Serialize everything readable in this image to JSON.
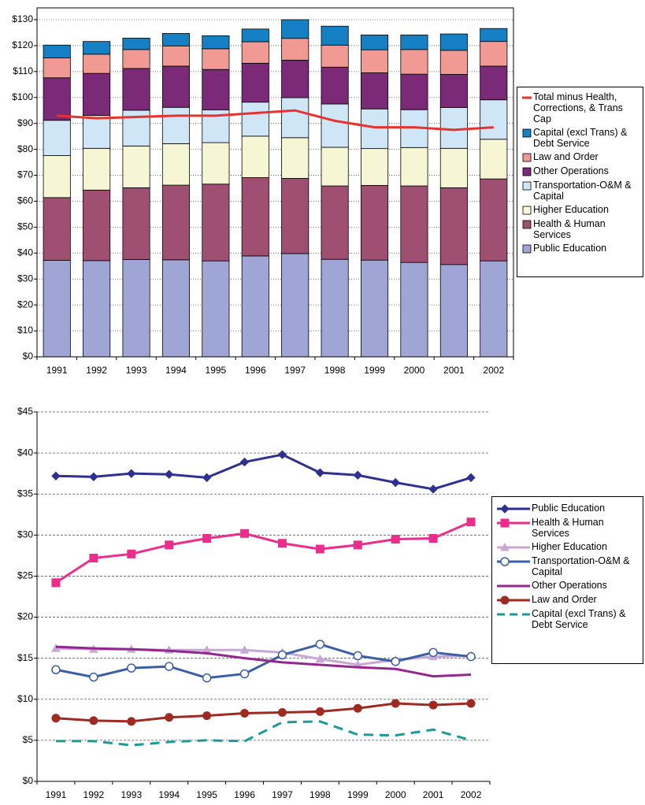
{
  "chart_data": [
    {
      "type": "stacked-bar",
      "categories": [
        "1991",
        "1992",
        "1993",
        "1994",
        "1995",
        "1996",
        "1997",
        "1998",
        "1999",
        "2000",
        "2001",
        "2002"
      ],
      "ylim": [
        0,
        130
      ],
      "yticks": [
        {
          "value": 0,
          "label": "$0"
        },
        {
          "value": 10,
          "label": "$10"
        },
        {
          "value": 20,
          "label": "$20"
        },
        {
          "value": 30,
          "label": "$30"
        },
        {
          "value": 40,
          "label": "$40"
        },
        {
          "value": 50,
          "label": "$50"
        },
        {
          "value": 60,
          "label": "$60"
        },
        {
          "value": 70,
          "label": "$70"
        },
        {
          "value": 80,
          "label": "$80"
        },
        {
          "value": 90,
          "label": "$90"
        },
        {
          "value": 100,
          "label": "$100"
        },
        {
          "value": 110,
          "label": "$110"
        },
        {
          "value": 120,
          "label": "$120"
        },
        {
          "value": 130,
          "label": "$130"
        }
      ],
      "grid": true,
      "series": [
        {
          "name": "Public Education",
          "color": "#9fa6d6",
          "values": [
            37.2,
            37.1,
            37.5,
            37.4,
            37.0,
            38.9,
            39.8,
            37.6,
            37.3,
            36.4,
            35.6,
            37.0
          ]
        },
        {
          "name": "Health & Human Services",
          "color": "#9e4f72",
          "values": [
            24.2,
            27.2,
            27.7,
            28.8,
            29.6,
            30.2,
            29.0,
            28.3,
            28.8,
            29.5,
            29.6,
            31.6
          ]
        },
        {
          "name": "Higher Education",
          "color": "#f7f6d4",
          "values": [
            16.2,
            16.1,
            16.1,
            16.0,
            16.0,
            16.0,
            15.7,
            14.9,
            14.2,
            14.8,
            15.2,
            15.3
          ]
        },
        {
          "name": "Transportation-O&M & Capital",
          "color": "#cfe6f7",
          "values": [
            13.6,
            12.7,
            13.8,
            14.0,
            12.6,
            13.1,
            15.4,
            16.7,
            15.3,
            14.6,
            15.7,
            15.2
          ]
        },
        {
          "name": "Other Operations",
          "color": "#7b2a78",
          "values": [
            16.4,
            16.2,
            16.1,
            15.9,
            15.6,
            15.0,
            14.5,
            14.2,
            13.9,
            13.7,
            12.8,
            13.0
          ]
        },
        {
          "name": "Law and Order",
          "color": "#f19a94",
          "values": [
            7.7,
            7.4,
            7.3,
            7.8,
            8.0,
            8.3,
            8.4,
            8.5,
            8.9,
            9.5,
            9.3,
            9.5
          ]
        },
        {
          "name": "Capital (excl Trans) & Debt Service",
          "color": "#1680c4",
          "values": [
            4.9,
            4.9,
            4.4,
            4.8,
            5.0,
            4.9,
            7.2,
            7.3,
            5.7,
            5.6,
            6.3,
            5.0
          ]
        },
        {
          "name": "Total minus Health, Corrections, & Trans Cap",
          "color": "#e8322e",
          "type": "line",
          "values": [
            93,
            92,
            92.5,
            93,
            93,
            94,
            95,
            91,
            88.5,
            88.5,
            87.5,
            88.5
          ]
        }
      ]
    },
    {
      "type": "line",
      "categories": [
        "1991",
        "1992",
        "1993",
        "1994",
        "1995",
        "1996",
        "1997",
        "1998",
        "1999",
        "2000",
        "2001",
        "2002"
      ],
      "ylim": [
        0,
        45
      ],
      "yticks": [
        {
          "value": 0,
          "label": "$0"
        },
        {
          "value": 5,
          "label": "$5"
        },
        {
          "value": 10,
          "label": "$10"
        },
        {
          "value": 15,
          "label": "$15"
        },
        {
          "value": 20,
          "label": "$20"
        },
        {
          "value": 25,
          "label": "$25"
        },
        {
          "value": 30,
          "label": "$30"
        },
        {
          "value": 35,
          "label": "$35"
        },
        {
          "value": 40,
          "label": "$40"
        },
        {
          "value": 45,
          "label": "$45"
        }
      ],
      "grid": true,
      "series": [
        {
          "name": "Public Education",
          "color": "#2e3192",
          "marker": "diamond",
          "values": [
            37.2,
            37.1,
            37.5,
            37.4,
            37.0,
            38.9,
            39.8,
            37.6,
            37.3,
            36.4,
            35.6,
            37.0
          ]
        },
        {
          "name": "Health & Human Services",
          "color": "#ec2d8c",
          "marker": "square",
          "values": [
            24.2,
            27.2,
            27.7,
            28.8,
            29.6,
            30.2,
            29.0,
            28.3,
            28.8,
            29.5,
            29.6,
            31.6
          ]
        },
        {
          "name": "Higher Education",
          "color": "#c7a8d4",
          "marker": "triangle",
          "values": [
            16.2,
            16.1,
            16.1,
            16.0,
            16.0,
            16.0,
            15.7,
            14.9,
            14.2,
            14.8,
            15.2,
            15.3
          ]
        },
        {
          "name": "Transportation-O&M & Capital",
          "color": "#3a5fa8",
          "marker": "open-circle",
          "values": [
            13.6,
            12.7,
            13.8,
            14.0,
            12.6,
            13.1,
            15.4,
            16.7,
            15.3,
            14.6,
            15.7,
            15.2
          ]
        },
        {
          "name": "Other Operations",
          "color": "#93278f",
          "marker": "none",
          "values": [
            16.4,
            16.2,
            16.1,
            15.9,
            15.6,
            15.0,
            14.5,
            14.2,
            13.9,
            13.7,
            12.8,
            13.0
          ]
        },
        {
          "name": "Law and Order",
          "color": "#9e2a22",
          "marker": "circle",
          "values": [
            7.7,
            7.4,
            7.3,
            7.8,
            8.0,
            8.3,
            8.4,
            8.5,
            8.9,
            9.5,
            9.3,
            9.5
          ]
        },
        {
          "name": "Capital (excl Trans) & Debt Service",
          "color": "#1b9a9a",
          "marker": "none",
          "dash": true,
          "values": [
            4.9,
            4.9,
            4.4,
            4.8,
            5.0,
            4.9,
            7.2,
            7.3,
            5.7,
            5.6,
            6.3,
            5.0
          ]
        }
      ]
    }
  ]
}
